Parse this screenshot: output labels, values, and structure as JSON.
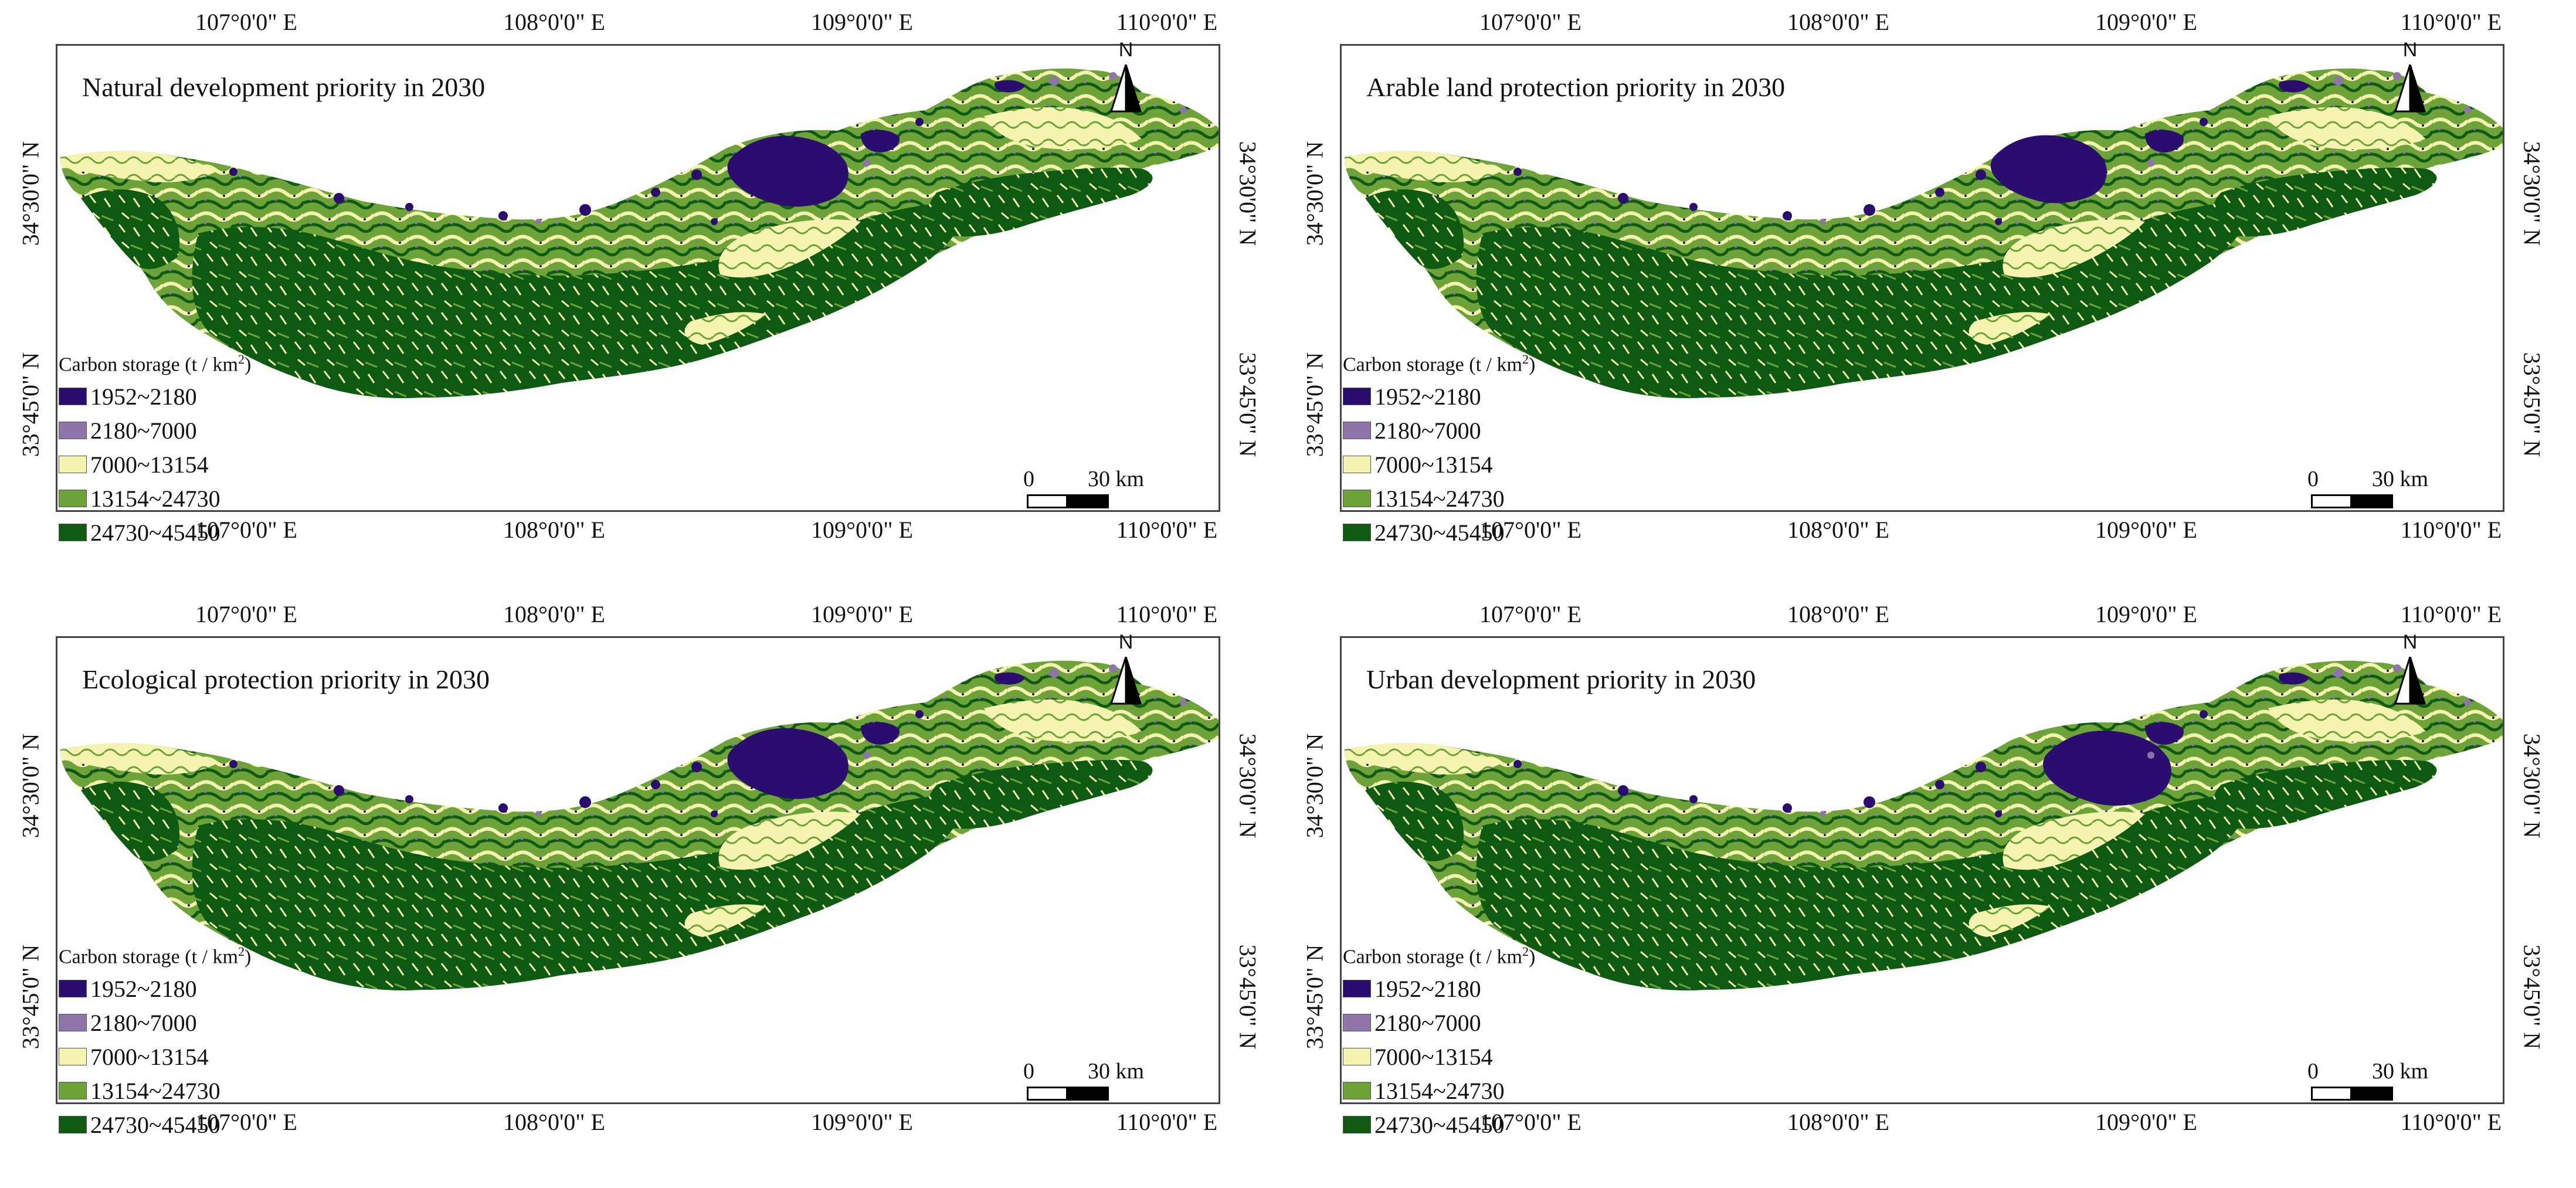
{
  "panels": [
    {
      "title": "Natural development priority in 2030",
      "north_label": "N",
      "lon_ticks": [
        "107°0'0\" E",
        "108°0'0\" E",
        "109°0'0\" E",
        "110°0'0\" E"
      ],
      "lat_ticks": [
        "34°30'0\" N",
        "33°45'0\" N"
      ],
      "legend_title": "Carbon storage (t / km",
      "legend_title_sup": "2",
      "legend_title_end": ")",
      "legend": [
        "1952~2180",
        "2180~7000",
        "7000~13154",
        "13154~24730",
        "24730~45450"
      ],
      "scale_zero": "0",
      "scale_distance": "30  km"
    },
    {
      "title": "Arable land protection priority in 2030",
      "north_label": "N",
      "lon_ticks": [
        "107°0'0\" E",
        "108°0'0\" E",
        "109°0'0\" E",
        "110°0'0\" E"
      ],
      "lat_ticks": [
        "34°30'0\" N",
        "33°45'0\" N"
      ],
      "legend_title": "Carbon storage (t / km",
      "legend_title_sup": "2",
      "legend_title_end": ")",
      "legend": [
        "1952~2180",
        "2180~7000",
        "7000~13154",
        "13154~24730",
        "24730~45450"
      ],
      "scale_zero": "0",
      "scale_distance": "30  km"
    },
    {
      "title": "Ecological protection priority in 2030",
      "north_label": "N",
      "lon_ticks": [
        "107°0'0\" E",
        "108°0'0\" E",
        "109°0'0\" E",
        "110°0'0\" E"
      ],
      "lat_ticks": [
        "34°30'0\" N",
        "33°45'0\" N"
      ],
      "legend_title": "Carbon storage (t / km",
      "legend_title_sup": "2",
      "legend_title_end": ")",
      "legend": [
        "1952~2180",
        "2180~7000",
        "7000~13154",
        "13154~24730",
        "24730~45450"
      ],
      "scale_zero": "0",
      "scale_distance": "30  km"
    },
    {
      "title": "Urban development priority in 2030",
      "north_label": "N",
      "lon_ticks": [
        "107°0'0\" E",
        "108°0'0\" E",
        "109°0'0\" E",
        "110°0'0\" E"
      ],
      "lat_ticks": [
        "34°30'0\" N",
        "33°45'0\" N"
      ],
      "legend_title": "Carbon storage (t / km",
      "legend_title_sup": "2",
      "legend_title_end": ")",
      "legend": [
        "1952~2180",
        "2180~7000",
        "7000~13154",
        "13154~24730",
        "24730~45450"
      ],
      "scale_zero": "0",
      "scale_distance": "30  km"
    }
  ],
  "colors": {
    "class1": "#2a0d6e",
    "class2": "#8e74a8",
    "class3": "#f5f3b0",
    "class4": "#6ea33a",
    "class5": "#0e5a12",
    "frame": "#444444"
  }
}
